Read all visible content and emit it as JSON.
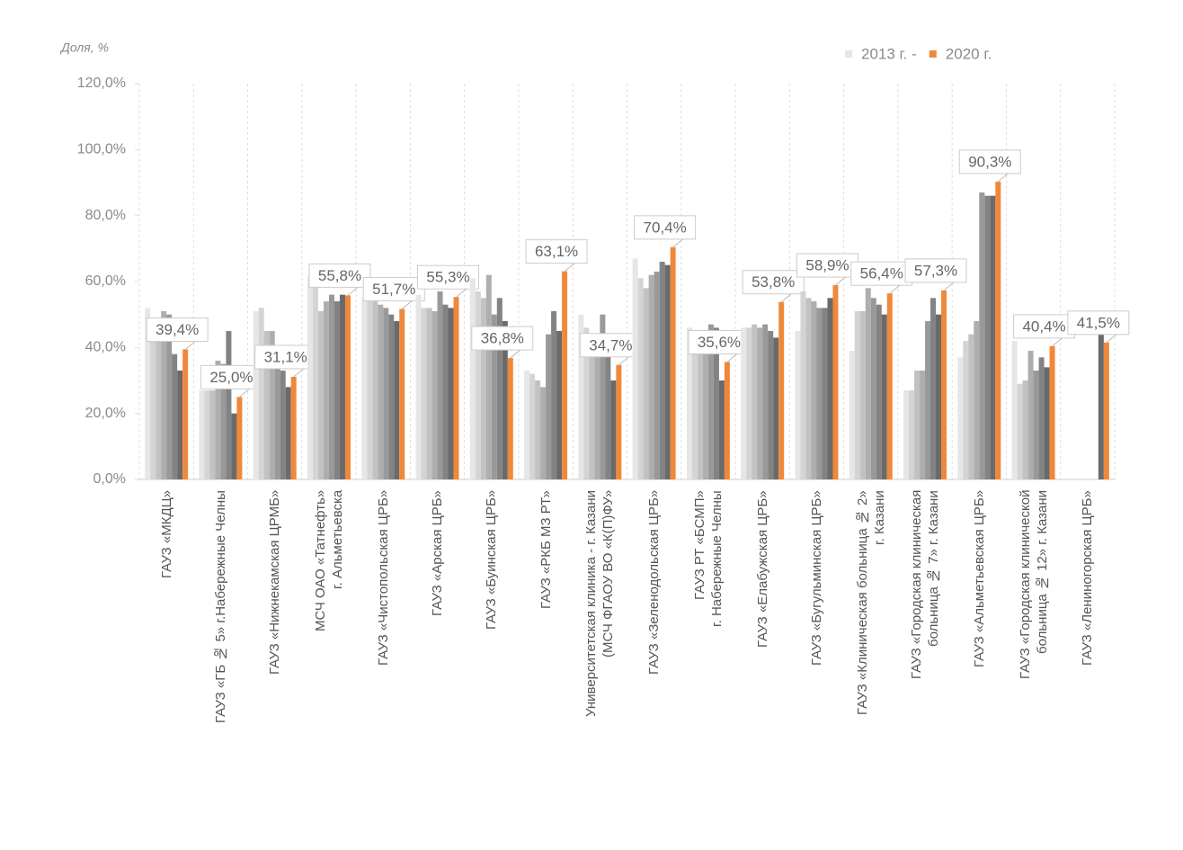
{
  "chart_data": {
    "type": "bar",
    "y_axis_label": "Доля, %",
    "categories": [
      "ГАУЗ «МКДЦ»",
      "ГАУЗ «ГБ № 5» г.Набережные Челны",
      "ГАУЗ «Нижнекамская ЦРМБ»",
      "МСЧ ОАО «Татнефть»\nг. Альметьевска",
      "ГАУЗ «Чистопольская ЦРБ»",
      "ГАУЗ «Арская ЦРБ»",
      "ГАУЗ «Буинская ЦРБ»",
      "ГАУЗ «РКБ МЗ РТ»",
      "Университетская клиника - г. Казани\n(МСЧ ФГАОУ ВО «К(П)ФУ»",
      "ГАУЗ «Зеленодольская ЦРБ»",
      "ГАУЗ РТ «БСМП»\nг. Набережные Челны",
      "ГАУЗ «Елабужская ЦРБ»",
      "ГАУЗ «Бугульминская ЦРБ»",
      "ГАУЗ «Клиническая больница № 2»\nг. Казани",
      "ГАУЗ «Городская клиническая\nбольница № 7» г. Казани",
      "ГАУЗ «Альметьевская ЦРБ»",
      "ГАУЗ «Городская клинической\nбольница № 12» г. Казани",
      "ГАУЗ «Лениногорская ЦРБ»"
    ],
    "series": [
      {
        "name": "2013 г. -",
        "color": "#e6e6e6",
        "values": [
          52,
          27,
          51,
          62,
          55,
          56,
          61,
          33,
          50,
          67,
          46,
          46,
          45,
          39,
          27,
          37,
          42,
          null
        ]
      },
      {
        "color": "#d4d4d4",
        "values": [
          44,
          27,
          52,
          61,
          55,
          52,
          57,
          32,
          46,
          61,
          42,
          46,
          57,
          51,
          27,
          42,
          29,
          null
        ]
      },
      {
        "color": "#c2c2c2",
        "values": [
          42,
          27,
          45,
          51,
          54,
          52,
          55,
          30,
          44,
          58,
          40,
          47,
          55,
          51,
          33,
          44,
          30,
          null
        ]
      },
      {
        "color": "#aeaeae",
        "values": [
          51,
          36,
          45,
          54,
          53,
          51,
          62,
          28,
          40,
          62,
          45,
          46,
          54,
          58,
          33,
          48,
          39,
          null
        ]
      },
      {
        "color": "#999999",
        "values": [
          50,
          35,
          38,
          56,
          52,
          57,
          50,
          44,
          50,
          63,
          47,
          47,
          52,
          55,
          48,
          87,
          33,
          null
        ]
      },
      {
        "color": "#838383",
        "values": [
          38,
          45,
          33,
          54,
          50,
          53,
          55,
          51,
          42,
          66,
          46,
          45,
          52,
          53,
          55,
          86,
          37,
          null
        ]
      },
      {
        "color": "#6a6a6a",
        "values": [
          33,
          20,
          28,
          56,
          48,
          52,
          48,
          45,
          30,
          65,
          30,
          43,
          55,
          50,
          50,
          86,
          34,
          50
        ]
      },
      {
        "name": "2020 г.",
        "color": "#f0883a",
        "values": [
          39.4,
          25.0,
          31.1,
          55.8,
          51.7,
          55.3,
          36.8,
          63.1,
          34.7,
          70.4,
          35.6,
          53.8,
          58.9,
          56.4,
          57.3,
          90.3,
          40.4,
          41.5
        ],
        "value_labels": [
          "39,4%",
          "25,0%",
          "31,1%",
          "55,8%",
          "51,7%",
          "55,3%",
          "36,8%",
          "63,1%",
          "34,7%",
          "70,4%",
          "35,6%",
          "53,8%",
          "58,9%",
          "56,4%",
          "57,3%",
          "90,3%",
          "40,4%",
          "41,5%"
        ]
      }
    ],
    "ylim": [
      0,
      120
    ],
    "yticks": [
      {
        "value": 0,
        "label": "0,0%"
      },
      {
        "value": 20,
        "label": "20,0%"
      },
      {
        "value": 40,
        "label": "40,0%"
      },
      {
        "value": 60,
        "label": "60,0%"
      },
      {
        "value": 80,
        "label": "80,0%"
      },
      {
        "value": 100,
        "label": "100,0%"
      },
      {
        "value": 120,
        "label": "120,0%"
      }
    ],
    "legend": "top-right"
  }
}
